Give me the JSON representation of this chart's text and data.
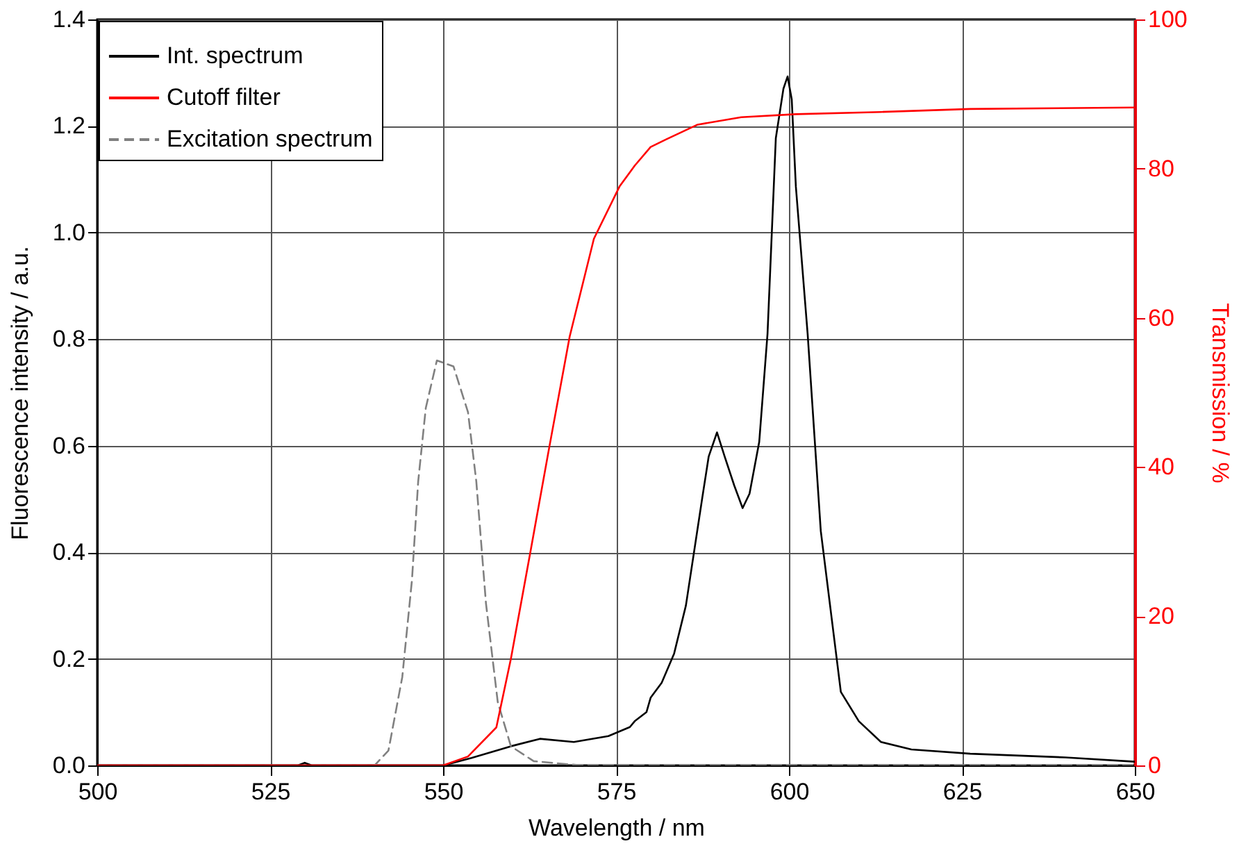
{
  "chart_data": {
    "type": "line",
    "xlabel": "Wavelength / nm",
    "ylabel": "Fluorescence intensity / a.u.",
    "y2label": "Transmission / %",
    "xlim": [
      500,
      650
    ],
    "xticks": [
      500,
      525,
      550,
      575,
      600,
      625,
      650
    ],
    "ylim": [
      0,
      1.4
    ],
    "yticks": [
      {
        "value": 0,
        "label": "0.0"
      },
      0.2,
      0.4,
      0.6,
      0.8,
      {
        "value": 1,
        "label": "1.0"
      },
      1.2,
      1.4
    ],
    "y2lim": [
      0,
      100
    ],
    "y2ticks": [
      0,
      20,
      40,
      60,
      80,
      100
    ],
    "grid": true,
    "legend": "top left",
    "series": [
      {
        "name": "Int. spectrum",
        "color": "#000000",
        "line_style": "solid",
        "x": [
          500,
          529,
          530,
          531,
          550,
          554.1,
          559.8,
          564.0,
          568.9,
          573.9,
          577.0,
          577.7,
          579.4,
          580.0,
          581.6,
          583.4,
          585.1,
          587.5,
          588.4,
          589.6,
          590.7,
          592.1,
          593.3,
          594.3,
          595.7,
          596.9,
          598.1,
          599.2,
          599.8,
          600.4,
          601.0,
          602.7,
          604.6,
          607.5,
          610.1,
          613.3,
          617.7,
          626.2,
          640,
          650
        ],
        "values": [
          0,
          0,
          0.005,
          0,
          0,
          0.014,
          0.036,
          0.05,
          0.044,
          0.055,
          0.072,
          0.083,
          0.1,
          0.127,
          0.155,
          0.21,
          0.3,
          0.505,
          0.58,
          0.625,
          0.58,
          0.525,
          0.483,
          0.51,
          0.607,
          0.81,
          1.177,
          1.27,
          1.293,
          1.25,
          1.086,
          0.81,
          0.44,
          0.138,
          0.083,
          0.044,
          0.03,
          0.022,
          0.015,
          0.007
        ]
      },
      {
        "name": "Cutoff filter",
        "color": "#ff0000",
        "line_style": "solid",
        "axis": "y2",
        "x": [
          500,
          550,
          553.6,
          557.7,
          559.8,
          562.5,
          565.3,
          568.3,
          571.8,
          575.5,
          577.7,
          580.0,
          582.2,
          586.8,
          593.1,
          601,
          613.3,
          626.2,
          650
        ],
        "values": [
          0,
          0,
          1.2,
          5.1,
          14.3,
          28,
          42.4,
          57.5,
          70.6,
          77.6,
          80.4,
          82.9,
          83.9,
          85.9,
          86.9,
          87.3,
          87.6,
          88.0,
          88.2
        ]
      },
      {
        "name": "Excitation spectrum",
        "color": "#808080",
        "line_style": "dashed",
        "x": [
          500,
          540.1,
          542.1,
          544.1,
          545.5,
          546.4,
          547.5,
          549.1,
          551.5,
          553.6,
          554.8,
          556.2,
          557.9,
          559.8,
          563.1,
          570,
          650
        ],
        "values": [
          0,
          0,
          0.028,
          0.166,
          0.348,
          0.533,
          0.671,
          0.76,
          0.749,
          0.663,
          0.533,
          0.304,
          0.119,
          0.036,
          0.008,
          0,
          0
        ]
      }
    ]
  }
}
